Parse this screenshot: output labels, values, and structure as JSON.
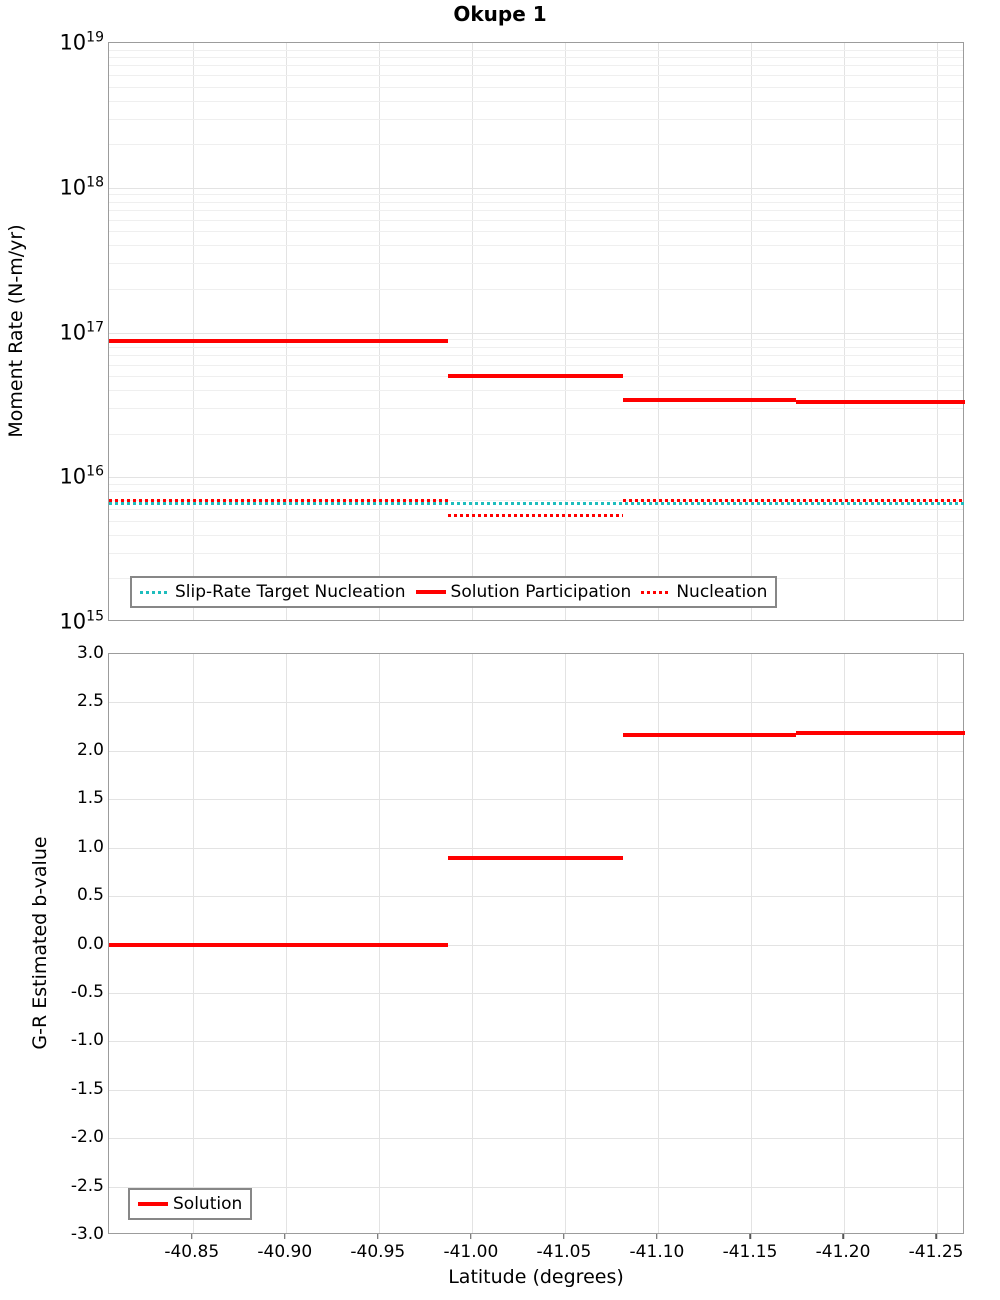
{
  "chart_data": [
    {
      "type": "line",
      "panel": "top",
      "title": "Okupe 1",
      "ylabel": "Moment Rate (N-m/yr)",
      "yscale": "log",
      "ylim": [
        1000000000000000.0,
        1e+19
      ],
      "y_tick_exponents": [
        19,
        18,
        17,
        16,
        15
      ],
      "xlim": [
        -40.805,
        -41.265
      ],
      "grid": true,
      "legend_position": "lower left",
      "series": [
        {
          "name": "Slip-Rate Target Nucleation",
          "color": "#1ebdbd",
          "style": "dotted",
          "segments": [
            {
              "lat0": -40.805,
              "lat1": -41.265,
              "value": 6600000000000000.0
            }
          ]
        },
        {
          "name": "Solution Participation",
          "color": "#ff0000",
          "style": "solid",
          "segments": [
            {
              "lat0": -40.805,
              "lat1": -40.987,
              "value": 8.8e+16
            },
            {
              "lat0": -40.987,
              "lat1": -41.081,
              "value": 5e+16
            },
            {
              "lat0": -41.081,
              "lat1": -41.174,
              "value": 3.4e+16
            },
            {
              "lat0": -41.174,
              "lat1": -41.265,
              "value": 3.3e+16
            }
          ]
        },
        {
          "name": "Nucleation",
          "color": "#ff0000",
          "style": "dotted",
          "segments": [
            {
              "lat0": -40.805,
              "lat1": -40.987,
              "value": 6900000000000000.0
            },
            {
              "lat0": -40.987,
              "lat1": -41.081,
              "value": 5400000000000000.0
            },
            {
              "lat0": -41.081,
              "lat1": -41.265,
              "value": 6900000000000000.0
            }
          ]
        }
      ]
    },
    {
      "type": "line",
      "panel": "bottom",
      "ylabel": "G-R Estimated b-value",
      "xlabel": "Latitude (degrees)",
      "ylim": [
        -3.0,
        3.0
      ],
      "xlim": [
        -40.805,
        -41.265
      ],
      "grid": true,
      "legend_position": "lower left",
      "x_ticks": [
        {
          "label": "-40.85",
          "value": -40.85
        },
        {
          "label": "-40.90",
          "value": -40.9
        },
        {
          "label": "-40.95",
          "value": -40.95
        },
        {
          "label": "-41.00",
          "value": -41.0
        },
        {
          "label": "-41.05",
          "value": -41.05
        },
        {
          "label": "-41.10",
          "value": -41.1
        },
        {
          "label": "-41.15",
          "value": -41.15
        },
        {
          "label": "-41.20",
          "value": -41.2
        },
        {
          "label": "-41.25",
          "value": -41.25
        }
      ],
      "y_ticks": [
        {
          "label": "3.0",
          "value": 3.0
        },
        {
          "label": "2.5",
          "value": 2.5
        },
        {
          "label": "2.0",
          "value": 2.0
        },
        {
          "label": "1.5",
          "value": 1.5
        },
        {
          "label": "1.0",
          "value": 1.0
        },
        {
          "label": "0.5",
          "value": 0.5
        },
        {
          "label": "0.0",
          "value": 0.0
        },
        {
          "label": "-0.5",
          "value": -0.5
        },
        {
          "label": "-1.0",
          "value": -1.0
        },
        {
          "label": "-1.5",
          "value": -1.5
        },
        {
          "label": "-2.0",
          "value": -2.0
        },
        {
          "label": "-2.5",
          "value": -2.5
        },
        {
          "label": "-3.0",
          "value": -3.0
        }
      ],
      "series": [
        {
          "name": "Solution",
          "color": "#ff0000",
          "style": "solid",
          "segments": [
            {
              "lat0": -40.805,
              "lat1": -40.987,
              "value": 0.0
            },
            {
              "lat0": -40.987,
              "lat1": -41.081,
              "value": 0.89
            },
            {
              "lat0": -41.081,
              "lat1": -41.174,
              "value": 2.16
            },
            {
              "lat0": -41.174,
              "lat1": -41.265,
              "value": 2.18
            }
          ]
        }
      ]
    }
  ],
  "colors": {
    "solution_red": "#ff0000",
    "target_teal": "#1ebdbd",
    "grid_major": "#e3e3e3",
    "grid_minor": "#efefef",
    "plot_border": "#9c9c9c",
    "legend_border": "#878787"
  }
}
